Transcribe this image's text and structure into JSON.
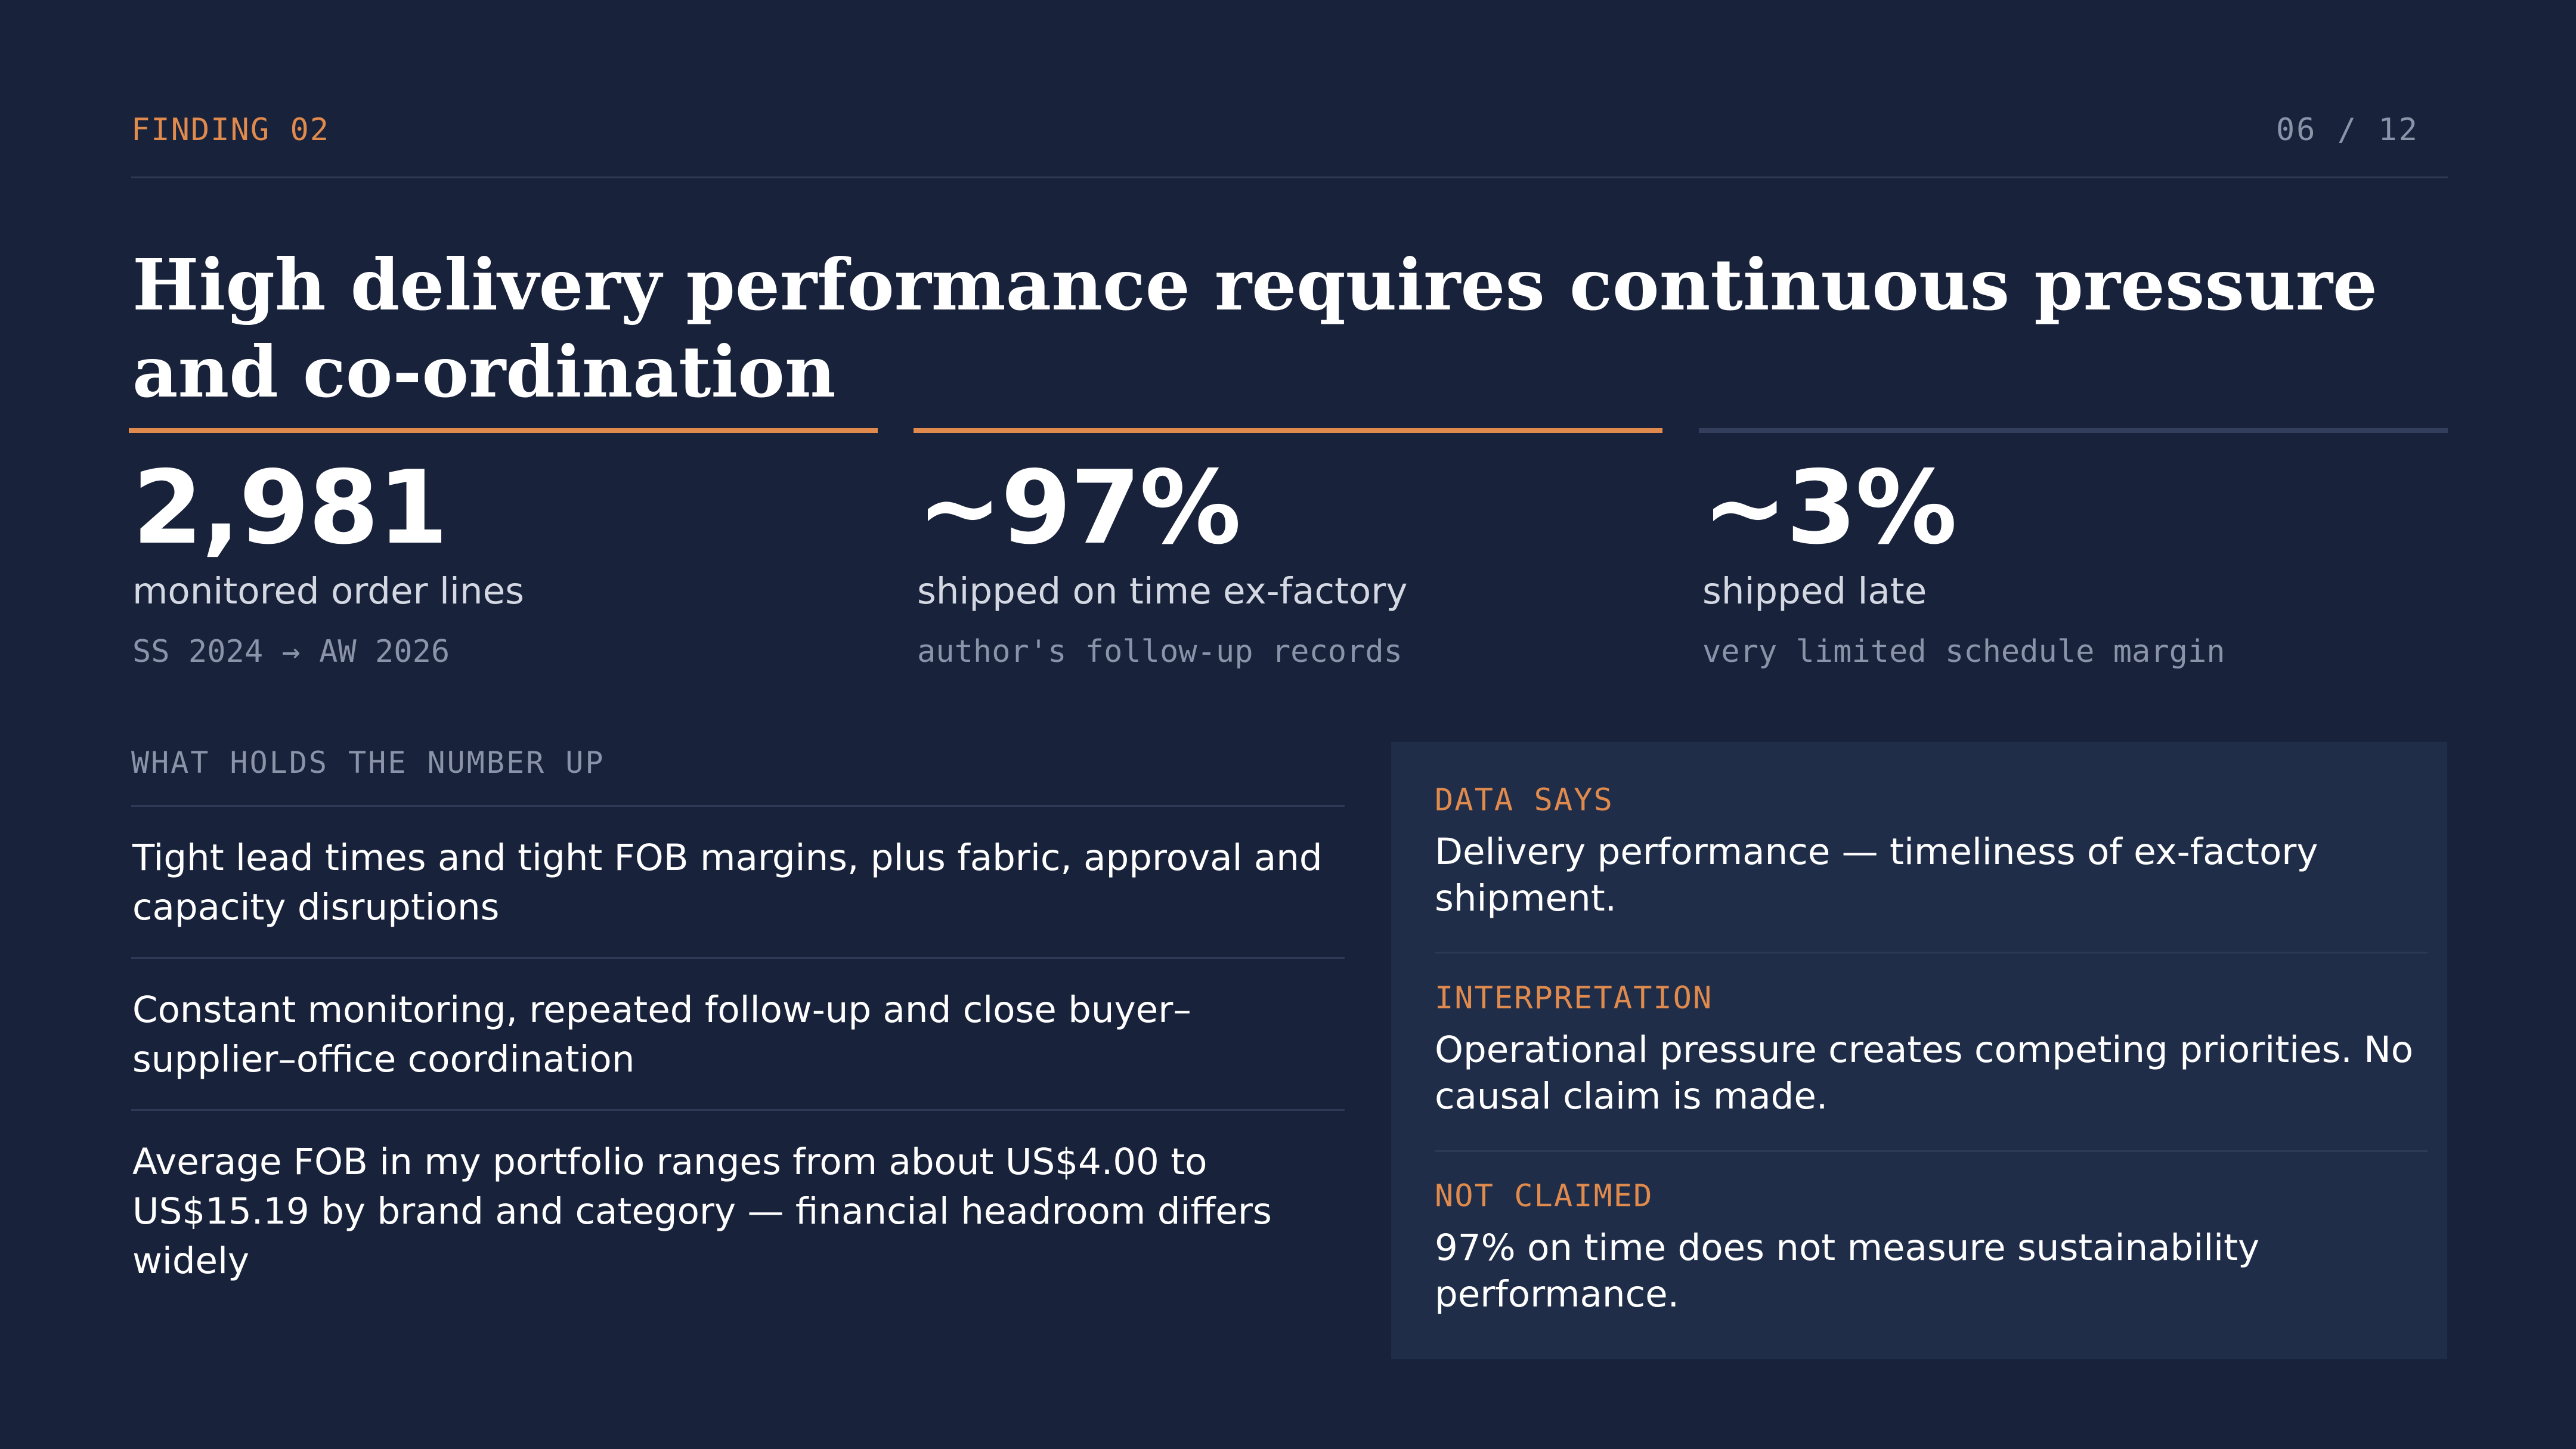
{
  "header": {
    "eyebrow": "FINDING 02",
    "page": "06 / 12"
  },
  "title": "High delivery performance requires continuous pressure and co-ordination",
  "stats": [
    {
      "value": "2,981",
      "label": "monitored order lines",
      "sub": "SS 2024 → AW 2026",
      "accent": "#e08a4d"
    },
    {
      "value": "~97%",
      "label": "shipped on time ex-factory",
      "sub": "author's follow-up records",
      "accent": "#e08a4d"
    },
    {
      "value": "~3%",
      "label": "shipped late",
      "sub": "very limited schedule margin",
      "accent": "#323e5b"
    }
  ],
  "holds": {
    "label": "WHAT HOLDS THE NUMBER UP",
    "items": [
      "Tight lead times and tight FOB margins, plus fabric, approval and capacity disruptions",
      "Constant monitoring, repeated follow-up and close buyer–supplier–office coordination",
      "Average FOB in my portfolio ranges from about US$4.00 to US$15.19 by brand and category — financial headroom differs widely"
    ]
  },
  "panel": {
    "sections": [
      {
        "label": "DATA SAYS",
        "text": "Delivery performance — timeliness of ex-factory shipment."
      },
      {
        "label": "INTERPRETATION",
        "text": "Operational pressure creates competing priorities. No causal claim is made."
      },
      {
        "label": "NOT CLAIMED",
        "text": "97% on time does not measure sustainability performance."
      }
    ]
  },
  "colors": {
    "background": "#18223a",
    "panel": "#1f2d48",
    "accent": "#e08a4d",
    "muted": "#8a93a8"
  }
}
